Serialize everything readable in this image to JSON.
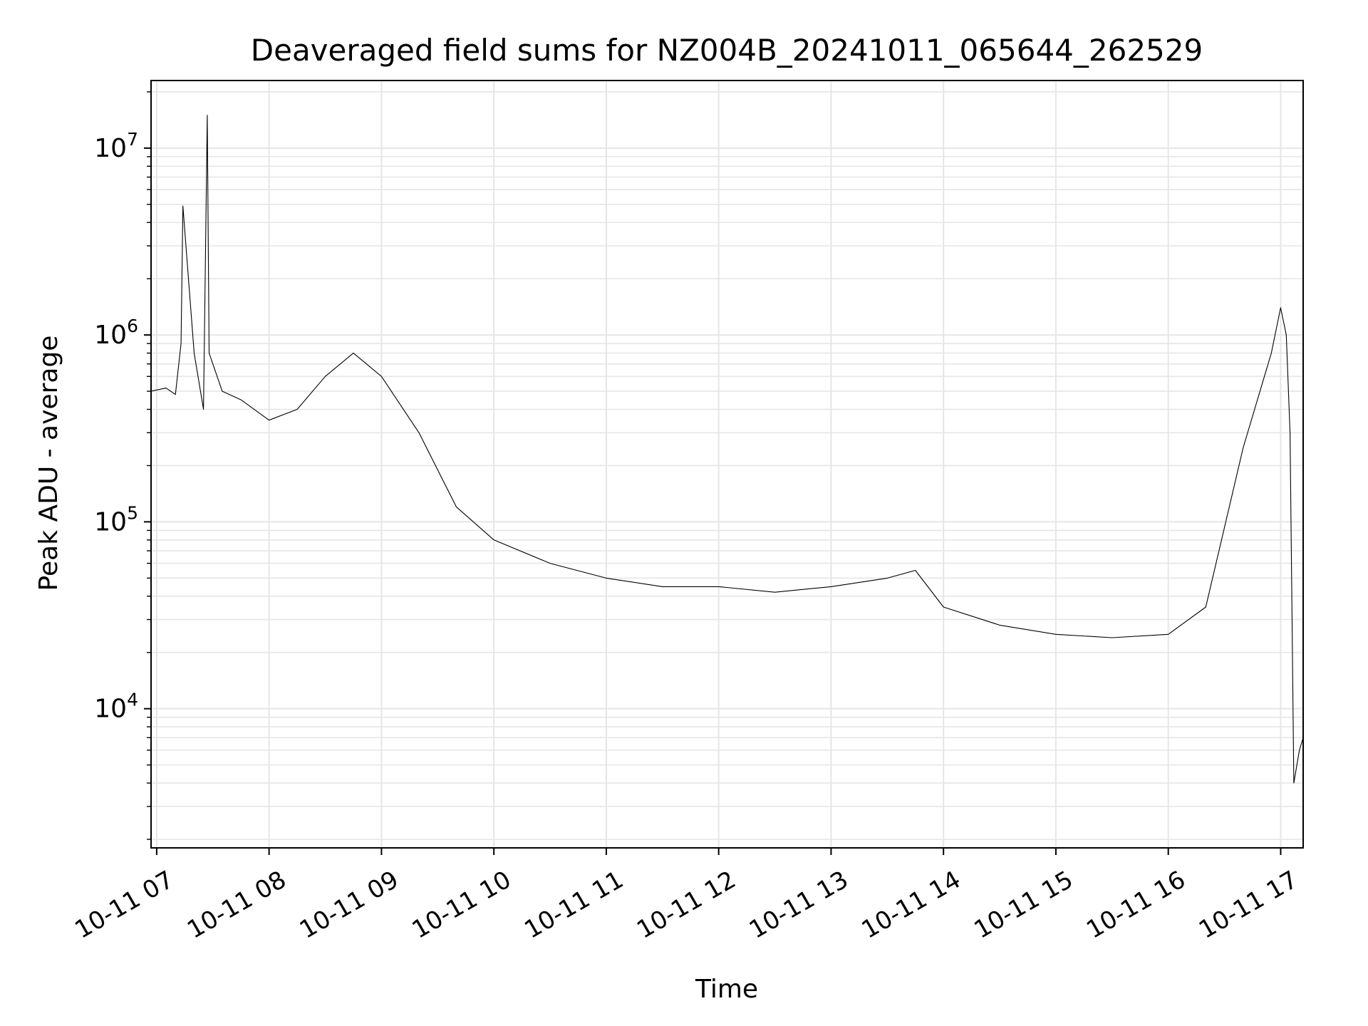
{
  "chart_data": {
    "type": "line",
    "title": "Deaveraged field sums for NZ004B_20241011_065644_262529",
    "xlabel": "Time",
    "ylabel": "Peak ADU - average",
    "yscale": "log",
    "grid": true,
    "grid_minor": true,
    "legend": "none",
    "line_color": "#000000",
    "xlim": [
      "2024-10-11 06:57",
      "2024-10-11 17:12"
    ],
    "ylim": [
      1800,
      23000000
    ],
    "x_ticks": [
      "2024-10-11 07:00",
      "2024-10-11 08:00",
      "2024-10-11 09:00",
      "2024-10-11 10:00",
      "2024-10-11 11:00",
      "2024-10-11 12:00",
      "2024-10-11 13:00",
      "2024-10-11 14:00",
      "2024-10-11 15:00",
      "2024-10-11 16:00",
      "2024-10-11 17:00"
    ],
    "x_tick_labels": [
      "10-11 07",
      "10-11 08",
      "10-11 09",
      "10-11 10",
      "10-11 11",
      "10-11 12",
      "10-11 13",
      "10-11 14",
      "10-11 15",
      "10-11 16",
      "10-11 17"
    ],
    "y_ticks": [
      10000,
      100000,
      1000000,
      10000000
    ],
    "y_tick_labels": [
      {
        "base": "10",
        "exp": "4"
      },
      {
        "base": "10",
        "exp": "5"
      },
      {
        "base": "10",
        "exp": "6"
      },
      {
        "base": "10",
        "exp": "7"
      }
    ],
    "series": [
      {
        "x": [
          "2024-10-11 06:57",
          "2024-10-11 07:05",
          "2024-10-11 07:10",
          "2024-10-11 07:13",
          "2024-10-11 07:14",
          "2024-10-11 07:20",
          "2024-10-11 07:25",
          "2024-10-11 07:27",
          "2024-10-11 07:28",
          "2024-10-11 07:35",
          "2024-10-11 07:45",
          "2024-10-11 08:00",
          "2024-10-11 08:15",
          "2024-10-11 08:30",
          "2024-10-11 08:45",
          "2024-10-11 09:00",
          "2024-10-11 09:20",
          "2024-10-11 09:40",
          "2024-10-11 10:00",
          "2024-10-11 10:30",
          "2024-10-11 11:00",
          "2024-10-11 11:30",
          "2024-10-11 12:00",
          "2024-10-11 12:30",
          "2024-10-11 13:00",
          "2024-10-11 13:30",
          "2024-10-11 13:45",
          "2024-10-11 14:00",
          "2024-10-11 14:30",
          "2024-10-11 15:00",
          "2024-10-11 15:30",
          "2024-10-11 16:00",
          "2024-10-11 16:20",
          "2024-10-11 16:40",
          "2024-10-11 16:55",
          "2024-10-11 17:00",
          "2024-10-11 17:03",
          "2024-10-11 17:05",
          "2024-10-11 17:07",
          "2024-10-11 17:10",
          "2024-10-11 17:12"
        ],
        "y": [
          500000,
          520000,
          480000,
          900000,
          4900000,
          800000,
          400000,
          15000000,
          800000,
          500000,
          450000,
          350000,
          400000,
          600000,
          800000,
          600000,
          300000,
          120000,
          80000,
          60000,
          50000,
          45000,
          45000,
          42000,
          45000,
          50000,
          55000,
          35000,
          28000,
          25000,
          24000,
          25000,
          35000,
          250000,
          800000,
          1400000,
          1000000,
          300000,
          4000,
          6000,
          7000
        ]
      }
    ]
  }
}
